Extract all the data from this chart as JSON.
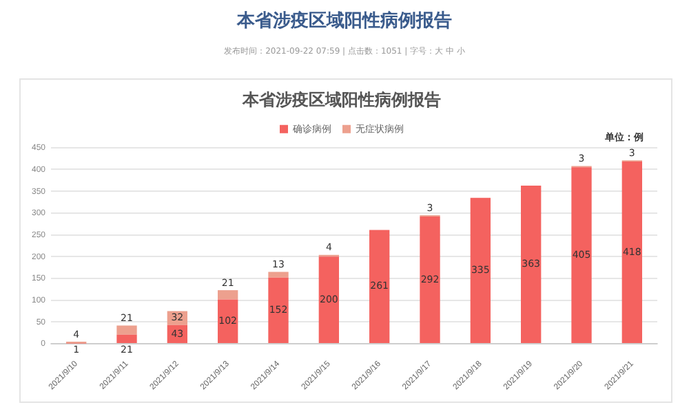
{
  "chart_data": {
    "type": "bar",
    "title": "本省涉疫区域阳性病例报告",
    "annotations": [
      "本省涉疫区域阳性病例报告",
      "发布时间：2021-09-22 07:59 | 点击数：1051 | 字号：大 中 小",
      "单位：例"
    ],
    "categories": [
      "2021/9/10",
      "2021/9/11",
      "2021/9/12",
      "2021/9/13",
      "2021/9/14",
      "2021/9/15",
      "2021/9/16",
      "2021/9/17",
      "2021/9/18",
      "2021/9/19",
      "2021/9/20",
      "2021/9/21"
    ],
    "series": [
      {
        "name": "确诊病例",
        "color": "#f4625f",
        "values": [
          1,
          21,
          43,
          102,
          152,
          200,
          261,
          292,
          335,
          363,
          405,
          418
        ]
      },
      {
        "name": "无症状病例",
        "color": "#eda08e",
        "values": [
          4,
          21,
          32,
          21,
          13,
          4,
          null,
          3,
          null,
          null,
          3,
          3
        ]
      }
    ],
    "stacked": true,
    "ylim": [
      0,
      450
    ],
    "yticks": [
      0,
      50,
      100,
      150,
      200,
      250,
      300,
      350,
      400,
      450
    ],
    "grid": "y",
    "legend": "top",
    "data_labels": true
  }
}
